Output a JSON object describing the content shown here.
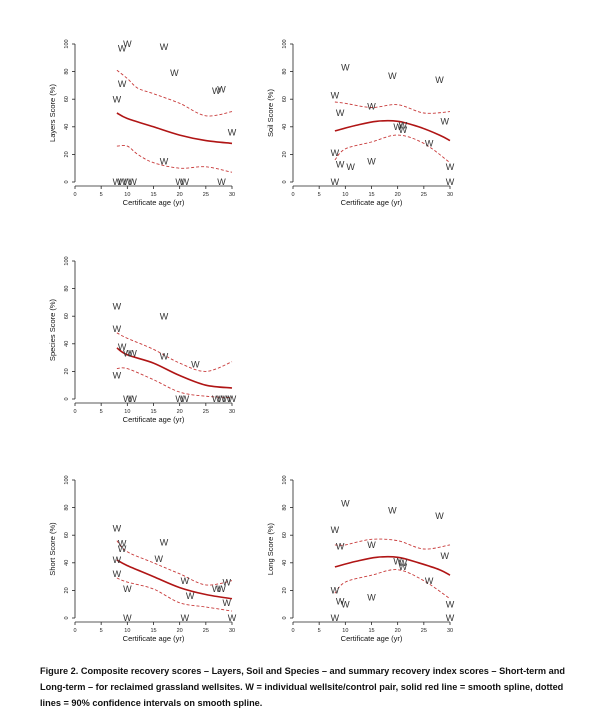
{
  "caption": "Figure 2. Composite recovery scores – Layers, Soil and Species – and summary recovery index scores – Short-term and Long-term – for reclaimed grassland wellsites.  W = individual wellsite/control pair, solid red line = smooth spline, dotted lines = 90% confidence intervals on smooth spline.",
  "colors": {
    "spline": "#b01515",
    "ci": "#c83a3a",
    "axis": "#222222",
    "marker": "#333333"
  },
  "chart_data": [
    {
      "id": "layers",
      "type": "scatter",
      "title": "",
      "xlabel": "Certificate age (yr)",
      "ylabel": "Layers Score (%)",
      "xlim": [
        0,
        30
      ],
      "ylim": [
        0,
        100
      ],
      "xticks": [
        0,
        5,
        10,
        15,
        20,
        25,
        30
      ],
      "yticks": [
        0,
        20,
        40,
        60,
        80,
        100
      ],
      "marker": "W",
      "points": [
        {
          "x": 8,
          "y": 0
        },
        {
          "x": 9,
          "y": 0
        },
        {
          "x": 10,
          "y": 0
        },
        {
          "x": 11,
          "y": 0
        },
        {
          "x": 8,
          "y": 60
        },
        {
          "x": 9,
          "y": 71
        },
        {
          "x": 9,
          "y": 97
        },
        {
          "x": 10,
          "y": 100
        },
        {
          "x": 17,
          "y": 98
        },
        {
          "x": 17,
          "y": 15
        },
        {
          "x": 19,
          "y": 79
        },
        {
          "x": 20,
          "y": 0
        },
        {
          "x": 21,
          "y": 0
        },
        {
          "x": 27,
          "y": 66
        },
        {
          "x": 28,
          "y": 67
        },
        {
          "x": 28,
          "y": 0
        },
        {
          "x": 30,
          "y": 36
        }
      ],
      "smooth_spline": {
        "x": [
          8,
          10,
          15,
          20,
          25,
          30
        ],
        "y": [
          50,
          46,
          40,
          34,
          30,
          28
        ]
      },
      "ci_upper": {
        "x": [
          8,
          10,
          12,
          15,
          20,
          25,
          30
        ],
        "y": [
          81,
          75,
          68,
          64,
          57,
          48,
          51
        ]
      },
      "ci_lower": {
        "x": [
          8,
          10,
          12,
          15,
          20,
          25,
          30
        ],
        "y": [
          26,
          26,
          20,
          14,
          10,
          11,
          7
        ]
      }
    },
    {
      "id": "soil",
      "type": "scatter",
      "title": "",
      "xlabel": "Certificate age (yr)",
      "ylabel": "Soil Score (%)",
      "xlim": [
        0,
        30
      ],
      "ylim": [
        0,
        100
      ],
      "xticks": [
        0,
        5,
        10,
        15,
        20,
        25,
        30
      ],
      "yticks": [
        0,
        20,
        40,
        60,
        80,
        100
      ],
      "marker": "W",
      "points": [
        {
          "x": 8,
          "y": 63
        },
        {
          "x": 9,
          "y": 50
        },
        {
          "x": 10,
          "y": 83
        },
        {
          "x": 8,
          "y": 21
        },
        {
          "x": 9,
          "y": 13
        },
        {
          "x": 11,
          "y": 11
        },
        {
          "x": 8,
          "y": 0
        },
        {
          "x": 15,
          "y": 15
        },
        {
          "x": 15,
          "y": 55
        },
        {
          "x": 19,
          "y": 77
        },
        {
          "x": 20,
          "y": 40
        },
        {
          "x": 21,
          "y": 41
        },
        {
          "x": 21,
          "y": 38
        },
        {
          "x": 26,
          "y": 28
        },
        {
          "x": 28,
          "y": 74
        },
        {
          "x": 29,
          "y": 44
        },
        {
          "x": 30,
          "y": 11
        },
        {
          "x": 30,
          "y": 0
        }
      ],
      "smooth_spline": {
        "x": [
          8,
          12,
          16,
          20,
          24,
          28,
          30
        ],
        "y": [
          37,
          41,
          44,
          44,
          40,
          34,
          30
        ]
      },
      "ci_upper": {
        "x": [
          8,
          10,
          15,
          20,
          25,
          30
        ],
        "y": [
          58,
          57,
          54,
          56,
          50,
          51
        ]
      },
      "ci_lower": {
        "x": [
          8,
          10,
          15,
          20,
          25,
          30
        ],
        "y": [
          16,
          24,
          29,
          34,
          28,
          14
        ]
      }
    },
    {
      "id": "species",
      "type": "scatter",
      "title": "",
      "xlabel": "Certificate age (yr)",
      "ylabel": "Species Score (%)",
      "xlim": [
        0,
        30
      ],
      "ylim": [
        0,
        100
      ],
      "xticks": [
        0,
        5,
        10,
        15,
        20,
        25,
        30
      ],
      "yticks": [
        0,
        20,
        40,
        60,
        80,
        100
      ],
      "marker": "W",
      "points": [
        {
          "x": 8,
          "y": 67
        },
        {
          "x": 8,
          "y": 51
        },
        {
          "x": 8,
          "y": 17
        },
        {
          "x": 9,
          "y": 38
        },
        {
          "x": 10,
          "y": 33
        },
        {
          "x": 11,
          "y": 33
        },
        {
          "x": 10,
          "y": 0
        },
        {
          "x": 11,
          "y": 0
        },
        {
          "x": 17,
          "y": 60
        },
        {
          "x": 17,
          "y": 31
        },
        {
          "x": 20,
          "y": 0
        },
        {
          "x": 21,
          "y": 0
        },
        {
          "x": 23,
          "y": 25
        },
        {
          "x": 27,
          "y": 0
        },
        {
          "x": 28,
          "y": 0
        },
        {
          "x": 29,
          "y": 0
        },
        {
          "x": 30,
          "y": 0
        }
      ],
      "smooth_spline": {
        "x": [
          8,
          10,
          15,
          20,
          25,
          30
        ],
        "y": [
          37,
          32,
          26,
          17,
          10,
          8
        ]
      },
      "ci_upper": {
        "x": [
          8,
          10,
          15,
          20,
          25,
          30
        ],
        "y": [
          48,
          44,
          36,
          26,
          20,
          27
        ]
      },
      "ci_lower": {
        "x": [
          8,
          10,
          15,
          20,
          25,
          30
        ],
        "y": [
          22,
          22,
          14,
          5,
          2,
          1
        ]
      }
    },
    {
      "id": "short",
      "type": "scatter",
      "title": "",
      "xlabel": "Certificate age (yr)",
      "ylabel": "Short Score (%)",
      "xlim": [
        0,
        30
      ],
      "ylim": [
        0,
        100
      ],
      "xticks": [
        0,
        5,
        10,
        15,
        20,
        25,
        30
      ],
      "yticks": [
        0,
        20,
        40,
        60,
        80,
        100
      ],
      "marker": "W",
      "points": [
        {
          "x": 8,
          "y": 65
        },
        {
          "x": 9,
          "y": 54
        },
        {
          "x": 9,
          "y": 50
        },
        {
          "x": 8,
          "y": 42
        },
        {
          "x": 8,
          "y": 32
        },
        {
          "x": 10,
          "y": 21
        },
        {
          "x": 10,
          "y": 0
        },
        {
          "x": 17,
          "y": 55
        },
        {
          "x": 16,
          "y": 43
        },
        {
          "x": 21,
          "y": 27
        },
        {
          "x": 22,
          "y": 16
        },
        {
          "x": 21,
          "y": 0
        },
        {
          "x": 27,
          "y": 21
        },
        {
          "x": 28,
          "y": 21
        },
        {
          "x": 29,
          "y": 26
        },
        {
          "x": 29,
          "y": 11
        },
        {
          "x": 30,
          "y": 0
        }
      ],
      "smooth_spline": {
        "x": [
          8,
          10,
          15,
          20,
          25,
          30
        ],
        "y": [
          42,
          38,
          30,
          22,
          17,
          14
        ]
      },
      "ci_upper": {
        "x": [
          8,
          10,
          15,
          20,
          25,
          30
        ],
        "y": [
          56,
          48,
          40,
          32,
          24,
          27
        ]
      },
      "ci_lower": {
        "x": [
          8,
          10,
          15,
          20,
          25,
          30
        ],
        "y": [
          29,
          26,
          21,
          11,
          8,
          5
        ]
      }
    },
    {
      "id": "long",
      "type": "scatter",
      "title": "",
      "xlabel": "Certificate age (yr)",
      "ylabel": "Long Score (%)",
      "xlim": [
        0,
        30
      ],
      "ylim": [
        0,
        100
      ],
      "xticks": [
        0,
        5,
        10,
        15,
        20,
        25,
        30
      ],
      "yticks": [
        0,
        20,
        40,
        60,
        80,
        100
      ],
      "marker": "W",
      "points": [
        {
          "x": 8,
          "y": 64
        },
        {
          "x": 9,
          "y": 52
        },
        {
          "x": 10,
          "y": 83
        },
        {
          "x": 8,
          "y": 20
        },
        {
          "x": 9,
          "y": 12
        },
        {
          "x": 10,
          "y": 10
        },
        {
          "x": 8,
          "y": 0
        },
        {
          "x": 15,
          "y": 15
        },
        {
          "x": 15,
          "y": 53
        },
        {
          "x": 19,
          "y": 78
        },
        {
          "x": 20,
          "y": 41
        },
        {
          "x": 21,
          "y": 40
        },
        {
          "x": 21,
          "y": 37
        },
        {
          "x": 26,
          "y": 27
        },
        {
          "x": 28,
          "y": 74
        },
        {
          "x": 29,
          "y": 45
        },
        {
          "x": 30,
          "y": 10
        },
        {
          "x": 30,
          "y": 0
        }
      ],
      "smooth_spline": {
        "x": [
          8,
          12,
          16,
          20,
          24,
          28,
          30
        ],
        "y": [
          37,
          41,
          44,
          44,
          40,
          35,
          31
        ]
      },
      "ci_upper": {
        "x": [
          8,
          10,
          15,
          20,
          25,
          30
        ],
        "y": [
          53,
          53,
          57,
          56,
          50,
          53
        ]
      },
      "ci_lower": {
        "x": [
          8,
          10,
          15,
          20,
          25,
          30
        ],
        "y": [
          18,
          26,
          31,
          35,
          27,
          14
        ]
      }
    }
  ]
}
